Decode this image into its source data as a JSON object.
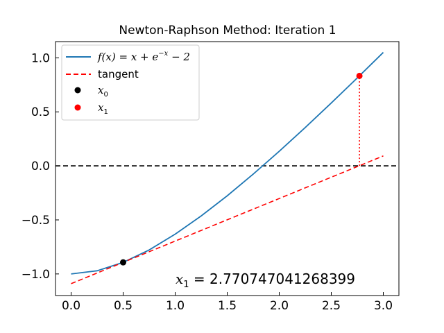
{
  "chart_data": {
    "type": "line",
    "title": "Newton-Raphson Method: Iteration 1",
    "xlabel": "",
    "ylabel": "",
    "xlim": [
      -0.15,
      3.15
    ],
    "ylim": [
      -1.2,
      1.15
    ],
    "x_ticks": [
      0.0,
      0.5,
      1.0,
      1.5,
      2.0,
      2.5,
      3.0
    ],
    "x_tick_labels": [
      "0.0",
      "0.5",
      "1.0",
      "1.5",
      "2.0",
      "2.5",
      "3.0"
    ],
    "y_ticks": [
      -1.0,
      -0.5,
      0.0,
      0.5,
      1.0
    ],
    "y_tick_labels": [
      "−1.0",
      "−0.5",
      "0.0",
      "0.5",
      "1.0"
    ],
    "grid": false,
    "legend_position": "upper-left",
    "series": [
      {
        "name": "f(x) = x + e^{-x} - 2",
        "style": "solid",
        "color": "#1f77b4",
        "x": [
          0.0,
          0.25,
          0.5,
          0.75,
          1.0,
          1.25,
          1.5,
          1.75,
          2.0,
          2.25,
          2.5,
          2.75,
          3.0
        ],
        "values": [
          -1.0,
          -0.971,
          -0.893,
          -0.778,
          -0.632,
          -0.463,
          -0.277,
          -0.076,
          0.135,
          0.355,
          0.582,
          0.814,
          1.05
        ]
      },
      {
        "name": "tangent",
        "style": "dashed",
        "color": "#ff0000",
        "x": [
          0.0,
          3.0
        ],
        "values": [
          -1.09,
          0.092
        ]
      },
      {
        "name": "x_0",
        "style": "marker",
        "color": "#000000",
        "x": [
          0.5
        ],
        "values": [
          -0.893
        ]
      },
      {
        "name": "x_1",
        "style": "marker",
        "color": "#ff0000",
        "x": [
          2.770747041268399
        ],
        "values": [
          0.833
        ]
      }
    ],
    "reference_lines": [
      {
        "kind": "horizontal",
        "y": 0.0,
        "style": "dashed",
        "color": "#000000"
      },
      {
        "kind": "vertical-segment",
        "x": 2.770747041268399,
        "y_from": 0.0,
        "y_to": 0.833,
        "style": "dotted",
        "color": "#ff0000"
      }
    ],
    "legend": {
      "entries": [
        {
          "label_prefix": "f(x) = x + e",
          "label_sup": "−x",
          "label_suffix": " − 2"
        },
        {
          "label": "tangent"
        },
        {
          "label_var": "x",
          "label_sub": "0"
        },
        {
          "label_var": "x",
          "label_sub": "1"
        }
      ]
    },
    "annotation": {
      "var": "x",
      "sub": "1",
      "text": " = 2.770747041268399",
      "position": "lower-right"
    }
  }
}
